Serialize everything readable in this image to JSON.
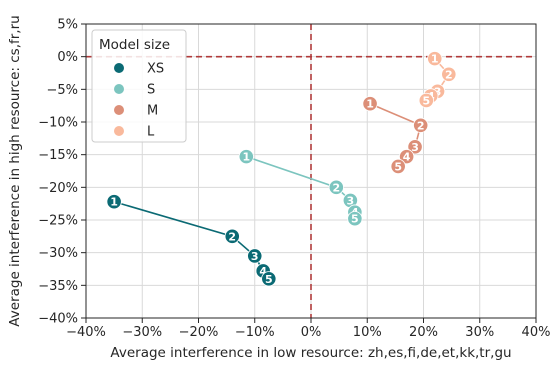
{
  "chart_data": {
    "type": "scatter",
    "xlabel": "Average interference in low resource: zh,es,fi,de,et,kk,tr,gu",
    "ylabel": "Average interference in high resource: cs,fr,ru",
    "xlim": [
      -40,
      40
    ],
    "ylim": [
      -40,
      5
    ],
    "xticks": [
      "−40%",
      "−30%",
      "−20%",
      "−10%",
      "0%",
      "10%",
      "20%",
      "30%",
      "40%"
    ],
    "yticks": [
      "5%",
      "0%",
      "−5%",
      "−10%",
      "−15%",
      "−20%",
      "−25%",
      "−30%",
      "−35%",
      "−40%"
    ],
    "grid": true,
    "reference_lines": {
      "x": 0,
      "y": 0,
      "color": "#b03a3a",
      "style": "dashed"
    },
    "legend": {
      "title": "Model size",
      "position": "top-left"
    },
    "series": [
      {
        "name": "XS",
        "color": "#0b6a74",
        "points": [
          {
            "x": -35,
            "y": -22.2,
            "label": "1"
          },
          {
            "x": -14,
            "y": -27.5,
            "label": "2"
          },
          {
            "x": -10,
            "y": -30.5,
            "label": "3"
          },
          {
            "x": -8.5,
            "y": -32.8,
            "label": "4"
          },
          {
            "x": -7.5,
            "y": -34,
            "label": "5"
          }
        ]
      },
      {
        "name": "S",
        "color": "#7cc5bf",
        "points": [
          {
            "x": -11.5,
            "y": -15.3,
            "label": "1"
          },
          {
            "x": 4.5,
            "y": -20,
            "label": "2"
          },
          {
            "x": 7,
            "y": -22,
            "label": "3"
          },
          {
            "x": 7.8,
            "y": -23.8,
            "label": "4"
          },
          {
            "x": 7.8,
            "y": -24.8,
            "label": "5"
          }
        ]
      },
      {
        "name": "M",
        "color": "#dc8f78",
        "points": [
          {
            "x": 10.5,
            "y": -7.2,
            "label": "1"
          },
          {
            "x": 19.5,
            "y": -10.5,
            "label": "2"
          },
          {
            "x": 18.5,
            "y": -13.8,
            "label": "3"
          },
          {
            "x": 17,
            "y": -15.3,
            "label": "4"
          },
          {
            "x": 15.5,
            "y": -16.8,
            "label": "5"
          }
        ]
      },
      {
        "name": "L",
        "color": "#f9b99c",
        "points": [
          {
            "x": 22,
            "y": -0.3,
            "label": "1"
          },
          {
            "x": 24.5,
            "y": -2.7,
            "label": "2"
          },
          {
            "x": 22.5,
            "y": -5.3,
            "label": "3"
          },
          {
            "x": 21.3,
            "y": -6,
            "label": "4"
          },
          {
            "x": 20.5,
            "y": -6.7,
            "label": "5"
          }
        ]
      }
    ]
  }
}
